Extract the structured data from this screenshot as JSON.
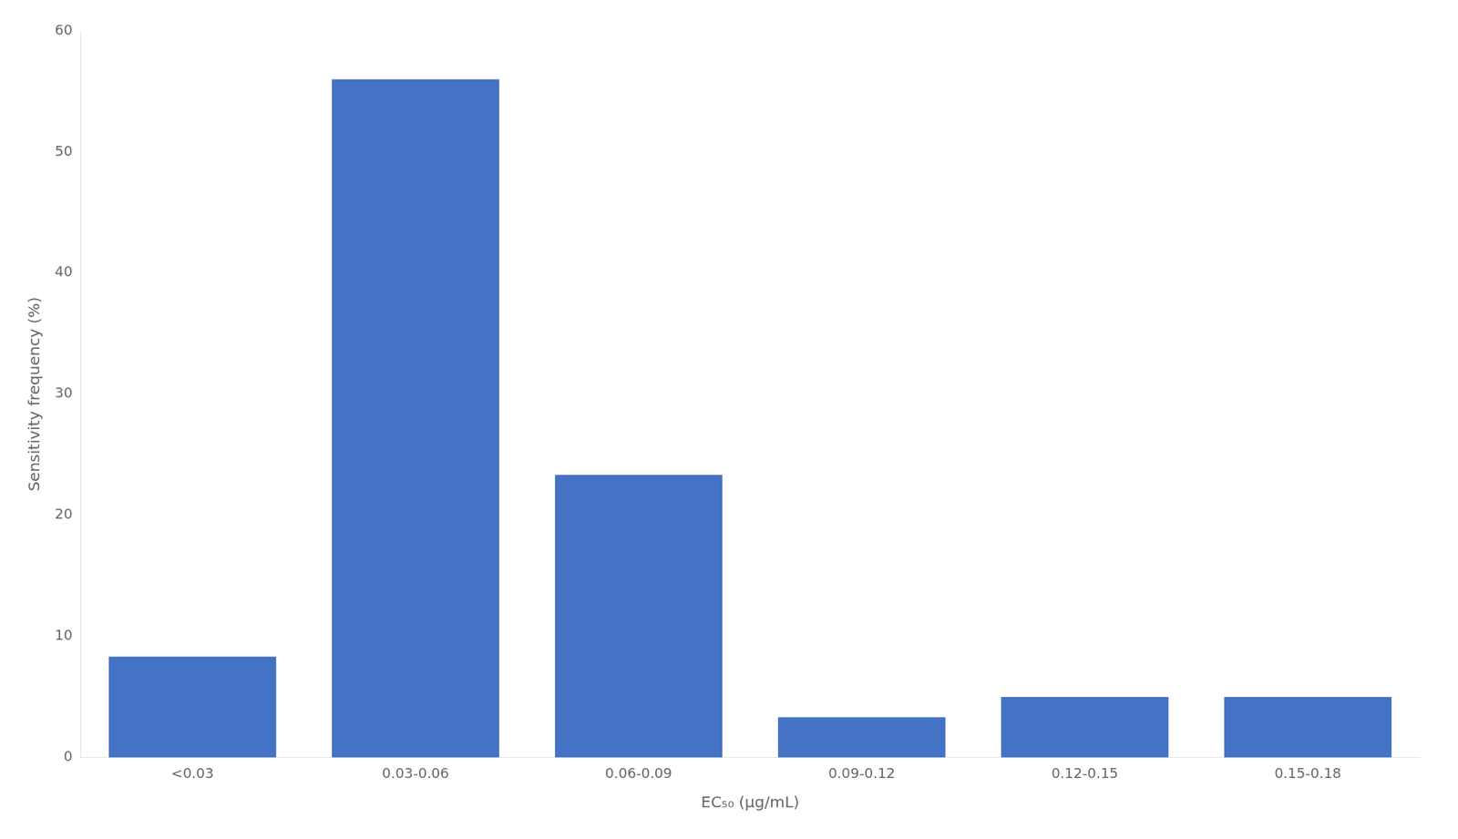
{
  "chart_data": {
    "type": "bar",
    "categories": [
      "<0.03",
      "0.03-0.06",
      "0.06-0.09",
      "0.09-0.12",
      "0.12-0.15",
      "0.15-0.18"
    ],
    "values": [
      8.33,
      56.0,
      23.33,
      3.33,
      5.0,
      5.0
    ],
    "color": "#4472C4",
    "xlabel": "EC₅₀ (μg/mL)",
    "ylabel": "Sensitivity frequency (%)",
    "ylim": [
      0,
      60
    ],
    "yticks": [
      0,
      10,
      20,
      30,
      40,
      50,
      60
    ],
    "grid": false
  }
}
